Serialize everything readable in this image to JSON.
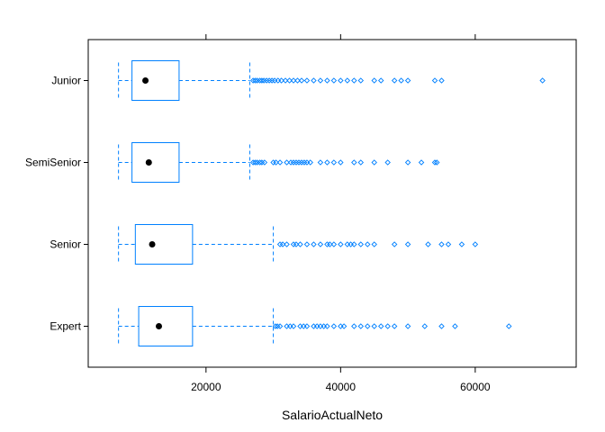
{
  "chart_data": {
    "type": "boxplot",
    "orientation": "horizontal",
    "xlabel": "SalarioActualNeto",
    "ylabel": "",
    "xlim": [
      2500,
      75000
    ],
    "xticks": [
      20000,
      40000,
      60000
    ],
    "xtick_labels": [
      "20000",
      "40000",
      "60000"
    ],
    "grid": false,
    "legend": "none",
    "colors": {
      "box": "#0080ff",
      "median": "#000000",
      "frame": "#000000"
    },
    "categories": [
      "Junior",
      "SemiSenior",
      "Senior",
      "Expert"
    ],
    "boxes": [
      {
        "name": "Junior",
        "whisker_low": 7000,
        "q1": 9000,
        "median": 11000,
        "q3": 16000,
        "whisker_high": 26500,
        "outliers": [
          27000,
          27300,
          27600,
          28000,
          28300,
          28600,
          29000,
          29400,
          29800,
          30200,
          30700,
          31200,
          31800,
          32400,
          33000,
          33600,
          34200,
          35000,
          36000,
          37000,
          38000,
          39000,
          40000,
          41000,
          42000,
          43000,
          45000,
          46000,
          48000,
          49000,
          50000,
          54000,
          55000,
          70000
        ]
      },
      {
        "name": "SemiSenior",
        "whisker_low": 7000,
        "q1": 9000,
        "median": 11500,
        "q3": 16000,
        "whisker_high": 26500,
        "outliers": [
          27000,
          27300,
          27600,
          28000,
          28300,
          28700,
          30000,
          30400,
          31000,
          32000,
          32600,
          33000,
          33400,
          33800,
          34200,
          34600,
          35000,
          35500,
          37000,
          38000,
          39000,
          40000,
          42000,
          43000,
          45000,
          47000,
          50000,
          52000,
          54000,
          54300
        ]
      },
      {
        "name": "Senior",
        "whisker_low": 7000,
        "q1": 9500,
        "median": 12000,
        "q3": 18000,
        "whisker_high": 30000,
        "outliers": [
          31000,
          31400,
          32000,
          33000,
          33400,
          34000,
          35000,
          36000,
          37000,
          38000,
          38400,
          39000,
          40000,
          41000,
          41500,
          42000,
          43000,
          44000,
          45000,
          48000,
          50000,
          53000,
          55000,
          56000,
          58000,
          60000
        ]
      },
      {
        "name": "Expert",
        "whisker_low": 7000,
        "q1": 10000,
        "median": 13000,
        "q3": 18000,
        "whisker_high": 30000,
        "outliers": [
          30300,
          30600,
          31000,
          32000,
          32500,
          33000,
          34000,
          34500,
          35000,
          36000,
          36500,
          37000,
          37500,
          38000,
          39000,
          40000,
          40500,
          42000,
          43000,
          44000,
          45000,
          46000,
          47000,
          48000,
          50000,
          52500,
          55000,
          57000,
          65000
        ]
      }
    ]
  }
}
